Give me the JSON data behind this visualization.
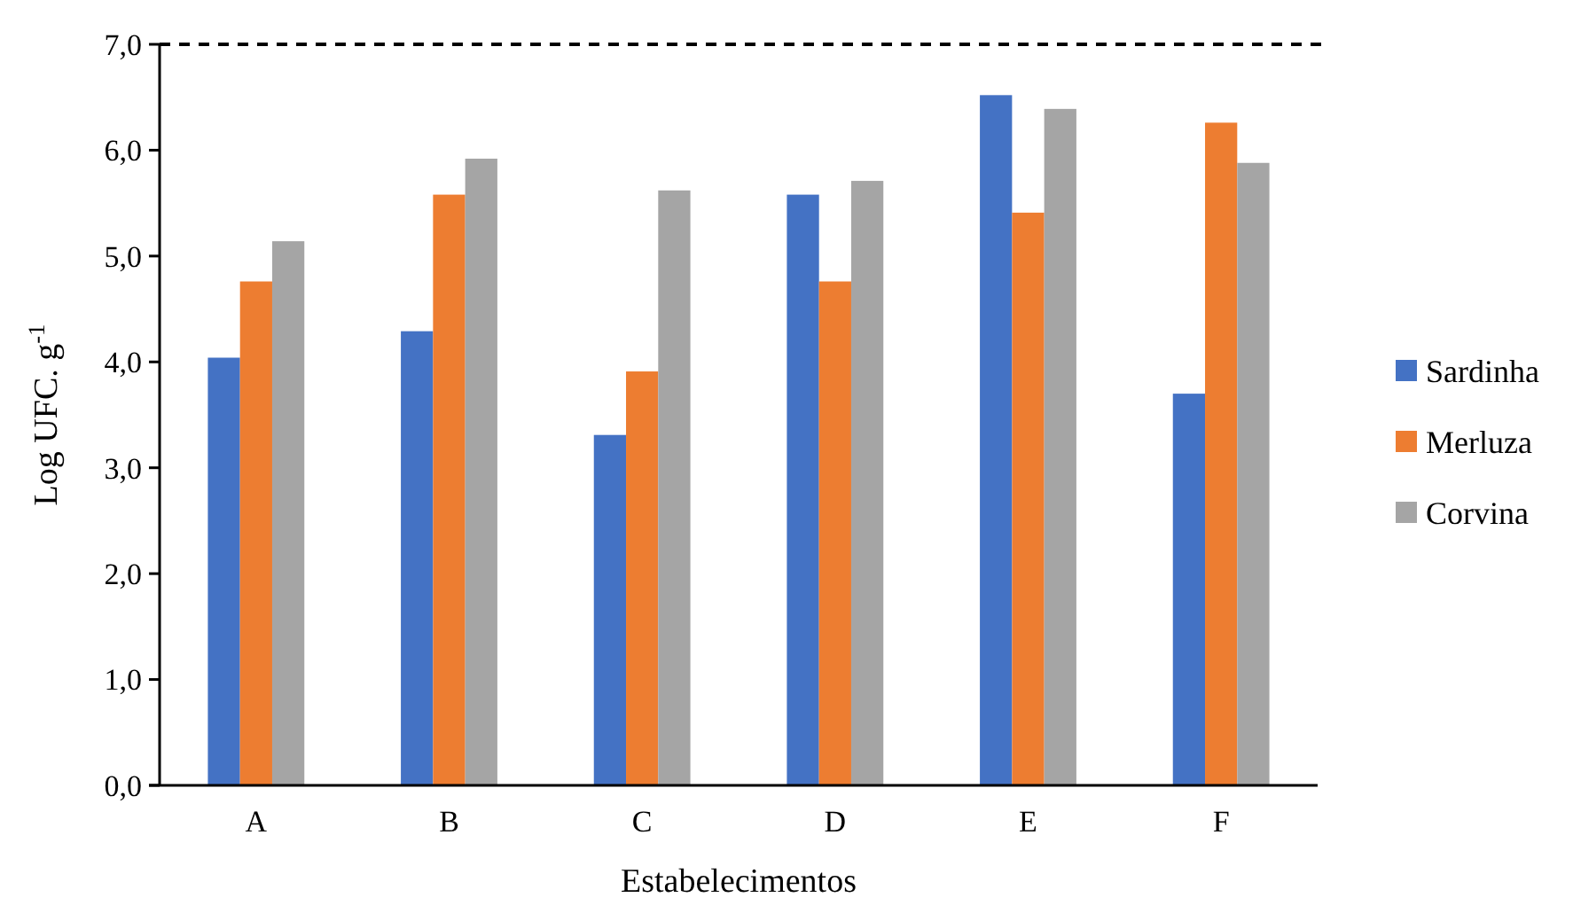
{
  "chart_data": {
    "type": "bar",
    "xlabel": "Estabelecimentos",
    "ylabel": "Log UFC. g$^{-1}$",
    "categories": [
      "A",
      "B",
      "C",
      "D",
      "E",
      "F"
    ],
    "series": [
      {
        "name": "Sardinha",
        "color": "#4472c4",
        "values": [
          4.04,
          4.29,
          3.31,
          5.58,
          6.52,
          3.7
        ]
      },
      {
        "name": "Merluza",
        "color": "#ed7d31",
        "values": [
          4.76,
          5.58,
          3.91,
          4.76,
          5.41,
          6.26
        ]
      },
      {
        "name": "Corvina",
        "color": "#a5a5a5",
        "values": [
          5.14,
          5.92,
          5.62,
          5.71,
          6.39,
          5.88
        ]
      }
    ],
    "ylim": [
      0,
      7
    ],
    "yticks": [
      {
        "value": 0,
        "label": "0,0"
      },
      {
        "value": 1,
        "label": "1,0"
      },
      {
        "value": 2,
        "label": "2,0"
      },
      {
        "value": 3,
        "label": "3,0"
      },
      {
        "value": 4,
        "label": "4,0"
      },
      {
        "value": 5,
        "label": "5,0"
      },
      {
        "value": 6,
        "label": "6,0"
      },
      {
        "value": 7,
        "label": "7,0"
      }
    ],
    "ref_lines": [
      {
        "axis": "y",
        "value": 7,
        "color": "#000000",
        "line_style": "dashed"
      }
    ],
    "grid": false,
    "legend": "right"
  }
}
